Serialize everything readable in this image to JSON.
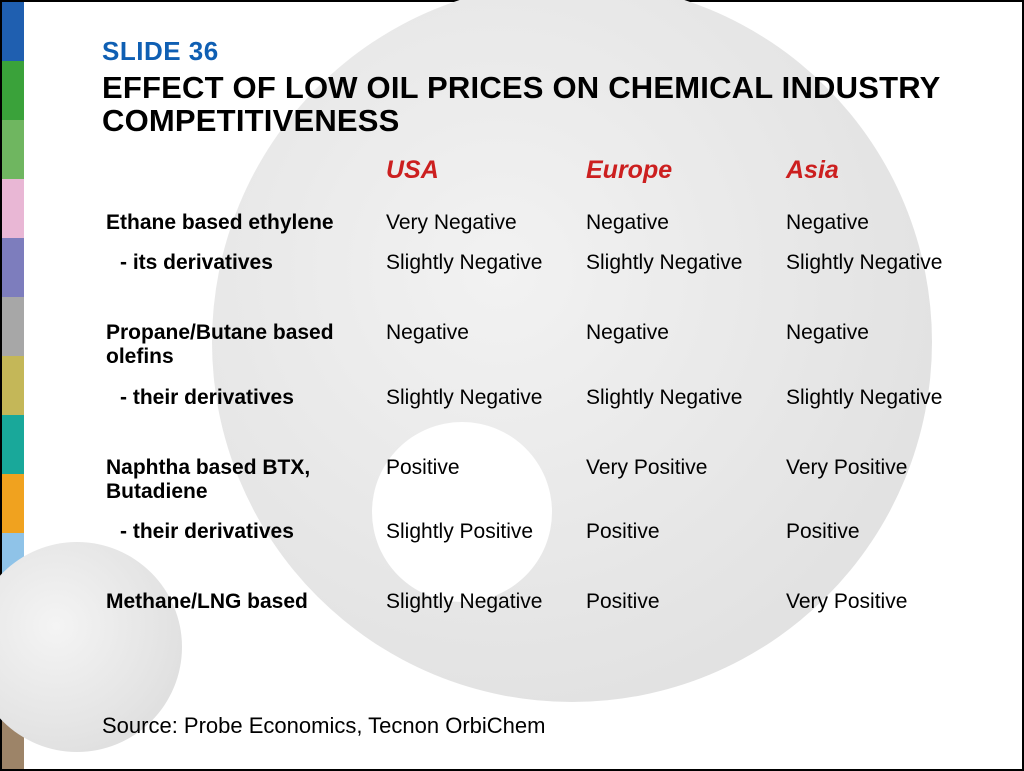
{
  "colors": {
    "slide_number": "#0f5fb3",
    "title": "#000000",
    "header": "#cc1f1f",
    "body_text": "#000000",
    "background": "#ffffff",
    "circle_gradient_light": "#f2f2f2",
    "circle_gradient_dark": "#dcdcdc"
  },
  "typography": {
    "slide_number_fontsize": 26,
    "title_fontsize": 31,
    "header_fontsize": 25,
    "body_fontsize": 21,
    "source_fontsize": 22,
    "font_family": "Futura / Trebuchet MS"
  },
  "sidebar_colors": [
    "#1f5fb0",
    "#3aa23a",
    "#6fb660",
    "#e9b7d5",
    "#7d7dbd",
    "#a7a7a7",
    "#c4b758",
    "#19a89a",
    "#f0a21f",
    "#8fc3e8",
    "#c2492d",
    "#a8c84a",
    "#9d8468"
  ],
  "slide_number": "SLIDE 36",
  "title": "EFFECT OF LOW OIL PRICES ON CHEMICAL INDUSTRY COMPETITIVENESS",
  "table": {
    "type": "table",
    "columns": [
      "USA",
      "Europe",
      "Asia"
    ],
    "groups": [
      {
        "label": "Ethane based ethylene",
        "values": [
          "Very Negative",
          "Negative",
          "Negative"
        ],
        "sub": {
          "label": "-  its derivatives",
          "values": [
            "Slightly Negative",
            "Slightly Negative",
            "Slightly Negative"
          ]
        }
      },
      {
        "label": "Propane/Butane based olefins",
        "values": [
          "Negative",
          "Negative",
          "Negative"
        ],
        "sub": {
          "label": "-  their derivatives",
          "values": [
            "Slightly Negative",
            "Slightly Negative",
            "Slightly Negative"
          ]
        }
      },
      {
        "label": "Naphtha based BTX, Butadiene",
        "values": [
          "Positive",
          "Very Positive",
          "Very Positive"
        ],
        "sub": {
          "label": "-  their derivatives",
          "values": [
            "Slightly Positive",
            "Positive",
            "Positive"
          ]
        }
      },
      {
        "label": "Methane/LNG based",
        "values": [
          "Slightly Negative",
          "Positive",
          "Very Positive"
        ]
      }
    ]
  },
  "source": "Source: Probe Economics, Tecnon OrbiChem"
}
